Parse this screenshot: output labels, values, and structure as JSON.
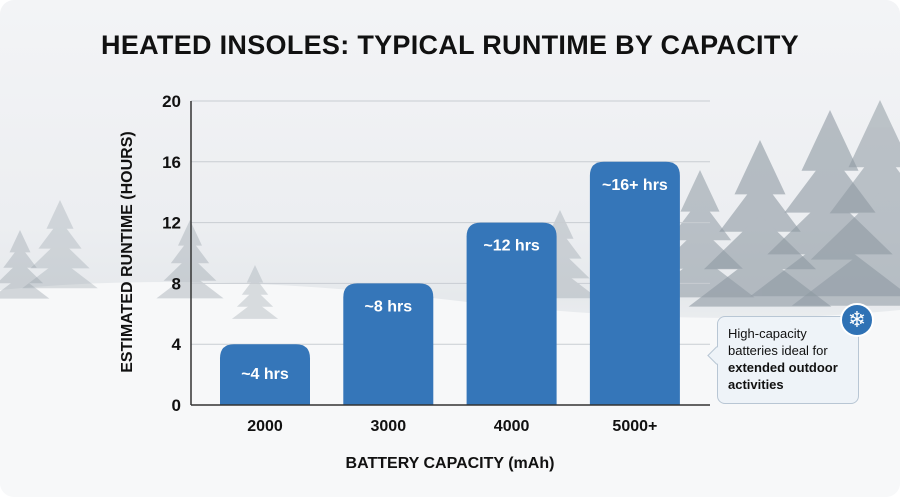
{
  "chart_data": {
    "type": "bar",
    "title": "HEATED INSOLES: TYPICAL RUNTIME BY CAPACITY",
    "xlabel": "BATTERY CAPACITY (mAh)",
    "ylabel": "ESTIMATED RUNTIME (HOURS)",
    "categories": [
      "2000",
      "3000",
      "4000",
      "5000+"
    ],
    "values": [
      4,
      8,
      12,
      16
    ],
    "data_labels": [
      "~4 hrs",
      "~8 hrs",
      "~12 hrs",
      "~16+ hrs"
    ],
    "ylim": [
      0,
      20
    ],
    "yticks": [
      0,
      4,
      8,
      12,
      16,
      20
    ],
    "grid": true,
    "bar_color": "#3576b9",
    "annotation": {
      "text_normal": "High-capacity batteries ideal for",
      "text_bold": "extended outdoor activities",
      "icon": "snowflake-icon",
      "icon_glyph": "❄"
    }
  }
}
